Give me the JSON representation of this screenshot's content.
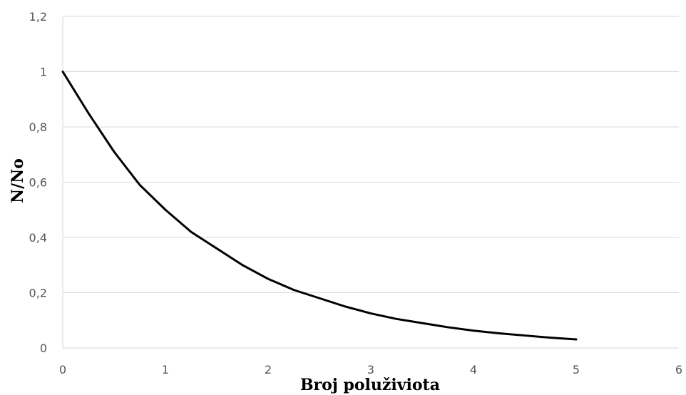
{
  "chart_data": {
    "type": "line",
    "xlabel": "Broj poluživiota",
    "ylabel": "N/No",
    "xlim": [
      0,
      6
    ],
    "ylim": [
      0,
      1.2
    ],
    "x_ticks": [
      "0",
      "1",
      "2",
      "3",
      "4",
      "5",
      "6"
    ],
    "y_ticks": [
      "0",
      "0,2",
      "0,4",
      "0,6",
      "0,8",
      "1",
      "1,2"
    ],
    "grid": true,
    "legend": "none",
    "series": [
      {
        "color": "#000000",
        "x": [
          0,
          0.25,
          0.5,
          0.75,
          1,
          1.25,
          1.5,
          1.75,
          2,
          2.25,
          2.5,
          2.75,
          3,
          3.25,
          3.5,
          3.75,
          4,
          4.25,
          4.5,
          4.75,
          5
        ],
        "y": [
          1,
          0.85,
          0.71,
          0.59,
          0.5,
          0.42,
          0.36,
          0.3,
          0.25,
          0.21,
          0.18,
          0.15,
          0.125,
          0.105,
          0.09,
          0.075,
          0.0625,
          0.053,
          0.045,
          0.037,
          0.031
        ]
      }
    ]
  }
}
